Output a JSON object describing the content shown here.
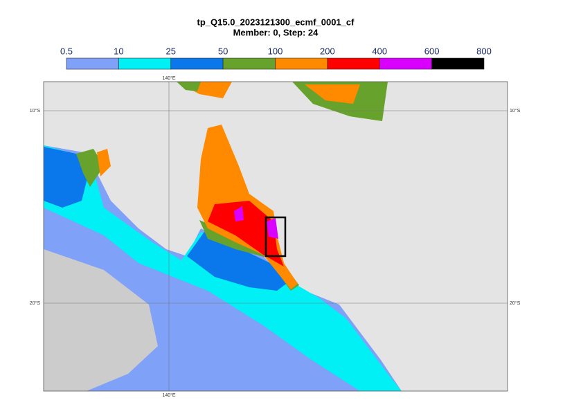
{
  "title": "tp_Q15.0_2023121300_ecmf_0001_cf",
  "subtitle": "Member: 0, Step: 24",
  "colorbar": {
    "ticks": [
      0.5,
      10,
      25,
      50,
      100,
      200,
      400,
      600,
      800
    ],
    "colors": [
      "#7fa1f7",
      "#00f0f5",
      "#0a78ea",
      "#66a22c",
      "#ff8a00",
      "#ff0000",
      "#d900ff",
      "#000000"
    ]
  },
  "grid_labels": {
    "lon": [
      "140°E"
    ],
    "lat": [
      "10°S",
      "20°S"
    ]
  }
}
